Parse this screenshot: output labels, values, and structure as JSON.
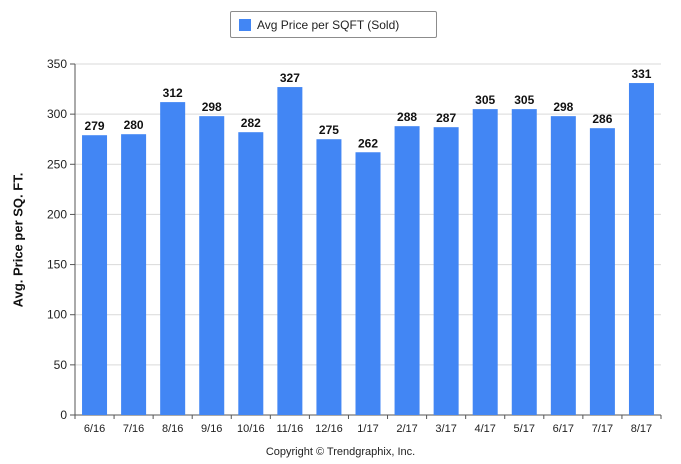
{
  "chart_data": {
    "type": "bar",
    "categories": [
      "6/16",
      "7/16",
      "8/16",
      "9/16",
      "10/16",
      "11/16",
      "12/16",
      "1/17",
      "2/17",
      "3/17",
      "4/17",
      "5/17",
      "6/17",
      "7/17",
      "8/17"
    ],
    "series": [
      {
        "name": "Avg Price per SQFT (Sold)",
        "values": [
          279,
          280,
          312,
          298,
          282,
          327,
          275,
          262,
          288,
          287,
          305,
          305,
          298,
          286,
          331
        ],
        "color": "#4286f4"
      }
    ],
    "ylabel": "Avg. Price per SQ. FT.",
    "xlabel": "",
    "ylim": [
      0,
      350
    ],
    "yticks": [
      0,
      50,
      100,
      150,
      200,
      250,
      300,
      350
    ],
    "data_labels": true,
    "grid": true,
    "legend": "top-center"
  },
  "legend": {
    "label": "Avg Price per SQFT (Sold)",
    "color": "#4286f4"
  },
  "footer": {
    "copyright": "Copyright © Trendgraphix, Inc."
  }
}
